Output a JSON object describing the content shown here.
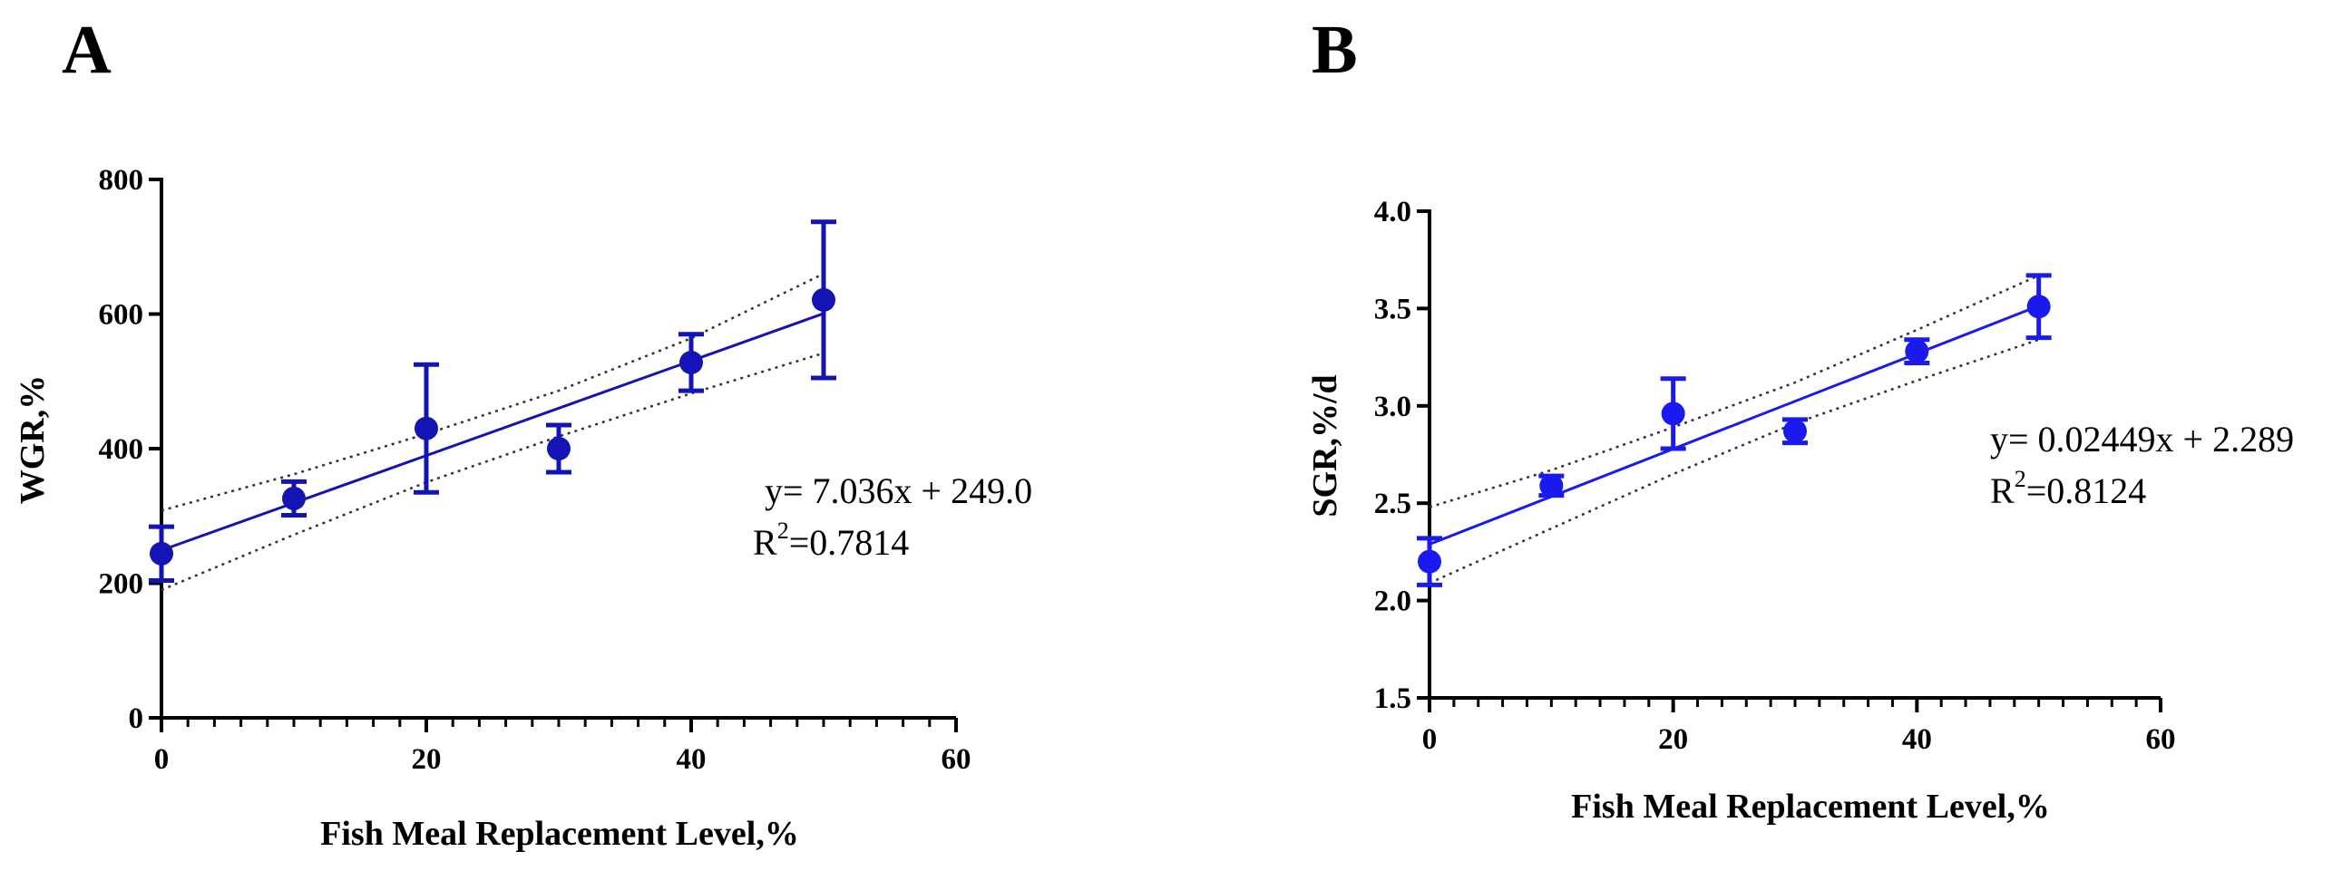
{
  "chart_data": [
    {
      "type": "scatter",
      "panel_label": "A",
      "xlabel": "Fish Meal Replacement Level,%",
      "ylabel": "WGR,%",
      "xlim": [
        0,
        60
      ],
      "ylim": [
        0,
        800
      ],
      "x_ticks": [
        0,
        20,
        40,
        60
      ],
      "y_ticks": [
        0,
        200,
        400,
        600,
        800
      ],
      "x_minor_step": 2,
      "points": [
        {
          "x": 0,
          "y": 244,
          "err": 40
        },
        {
          "x": 10,
          "y": 326,
          "err": 25
        },
        {
          "x": 20,
          "y": 430,
          "err": 95
        },
        {
          "x": 30,
          "y": 400,
          "err": 35
        },
        {
          "x": 40,
          "y": 528,
          "err": 42
        },
        {
          "x": 50,
          "y": 621,
          "err": 116
        }
      ],
      "fit": {
        "slope": 7.036,
        "intercept": 249.0
      },
      "ci_upper": [
        {
          "x": 0,
          "y": 308
        },
        {
          "x": 10,
          "y": 362
        },
        {
          "x": 20,
          "y": 422
        },
        {
          "x": 30,
          "y": 486
        },
        {
          "x": 40,
          "y": 564
        },
        {
          "x": 50,
          "y": 660
        }
      ],
      "ci_lower": [
        {
          "x": 0,
          "y": 190
        },
        {
          "x": 10,
          "y": 272
        },
        {
          "x": 20,
          "y": 350
        },
        {
          "x": 30,
          "y": 418
        },
        {
          "x": 40,
          "y": 482
        },
        {
          "x": 50,
          "y": 542
        }
      ],
      "equation": "y= 7.036x + 249.0",
      "r2_prefix": "R",
      "r2_sup": "2",
      "r2_value": "=0.7814",
      "color": "#1414b4"
    },
    {
      "type": "scatter",
      "panel_label": "B",
      "xlabel": "Fish Meal Replacement Level,%",
      "ylabel": "SGR,%/d",
      "xlim": [
        0,
        60
      ],
      "ylim": [
        1.5,
        4.0
      ],
      "x_ticks": [
        0,
        20,
        40,
        60
      ],
      "y_ticks": [
        1.5,
        2.0,
        2.5,
        3.0,
        3.5,
        4.0
      ],
      "y_tick_labels": [
        "1.5",
        "2.0",
        "2.5",
        "3.0",
        "3.5",
        "4.0"
      ],
      "x_minor_step": 2,
      "points": [
        {
          "x": 0,
          "y": 2.2,
          "err": 0.12
        },
        {
          "x": 10,
          "y": 2.59,
          "err": 0.05
        },
        {
          "x": 20,
          "y": 2.96,
          "err": 0.18
        },
        {
          "x": 30,
          "y": 2.87,
          "err": 0.06
        },
        {
          "x": 40,
          "y": 3.28,
          "err": 0.06
        },
        {
          "x": 50,
          "y": 3.51,
          "err": 0.16
        }
      ],
      "fit": {
        "slope": 0.02449,
        "intercept": 2.289
      },
      "ci_upper": [
        {
          "x": 0,
          "y": 2.48
        },
        {
          "x": 10,
          "y": 2.67
        },
        {
          "x": 20,
          "y": 2.89
        },
        {
          "x": 30,
          "y": 3.12
        },
        {
          "x": 40,
          "y": 3.39
        },
        {
          "x": 50,
          "y": 3.67
        }
      ],
      "ci_lower": [
        {
          "x": 0,
          "y": 2.09
        },
        {
          "x": 10,
          "y": 2.37
        },
        {
          "x": 20,
          "y": 2.65
        },
        {
          "x": 30,
          "y": 2.91
        },
        {
          "x": 40,
          "y": 3.13
        },
        {
          "x": 50,
          "y": 3.34
        }
      ],
      "equation": "y= 0.02449x + 2.289",
      "r2_prefix": "R",
      "r2_sup": "2",
      "r2_value": "=0.8124",
      "color": "#1a1aee"
    }
  ]
}
